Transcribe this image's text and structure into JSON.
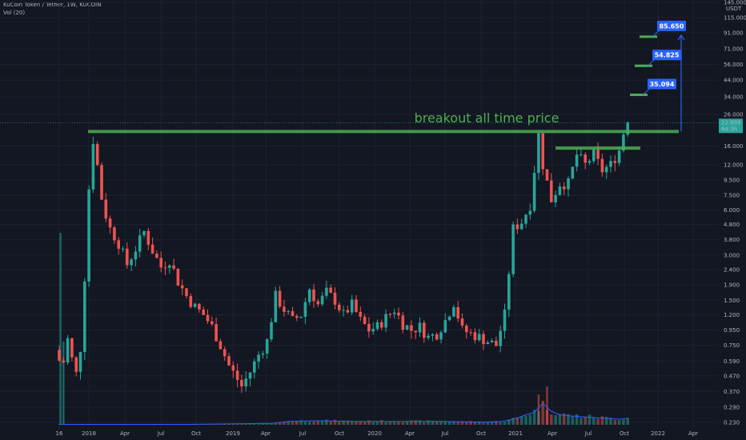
{
  "header": {
    "symbol_line": "KuCoin Token / Tether, 1W, KUCOIN",
    "volume_line": "Vol (20)"
  },
  "chart_data": {
    "type": "candlestick",
    "title": "KuCoin Token / Tether, 1W, KUCOIN",
    "scale": "log",
    "currency": "USDT",
    "ylim": [
      0.23,
      145
    ],
    "y_ticks": [
      "145.000",
      "115.000",
      "91.000",
      "71.000",
      "56.000",
      "44.000",
      "34.000",
      "26.000",
      "16.000",
      "12.000",
      "9.500",
      "7.500",
      "6.000",
      "4.800",
      "3.800",
      "3.000",
      "2.400",
      "1.900",
      "1.500",
      "1.200",
      "0.950",
      "0.750",
      "0.590",
      "0.470",
      "0.370",
      "0.290",
      "0.230"
    ],
    "x_ticks": [
      "16",
      "2018",
      "Apr",
      "Jul",
      "Oct",
      "2019",
      "Apr",
      "Jul",
      "Oct",
      "2020",
      "Apr",
      "Jul",
      "Oct",
      "2021",
      "Apr",
      "Jul",
      "Oct",
      "2022",
      "Apr"
    ],
    "last_price": "22.899",
    "countdown": "6d 3h",
    "annotations": {
      "breakout_label": "breakout all time price",
      "targets": [
        "35.094",
        "54.825",
        "85.650"
      ]
    },
    "ohlc_anchors": [
      {
        "t": 0,
        "p": 0.7
      },
      {
        "t": 0.6,
        "p": 0.6
      },
      {
        "t": 2.2,
        "p": 0.58
      },
      {
        "t": 3.2,
        "p": 0.9
      },
      {
        "t": 4.2,
        "p": 0.55
      },
      {
        "t": 5.2,
        "p": 0.47
      },
      {
        "t": 6.2,
        "p": 0.8
      },
      {
        "t": 7.6,
        "p": 4.5
      },
      {
        "t": 8.6,
        "p": 21
      },
      {
        "t": 9.2,
        "p": 16
      },
      {
        "t": 10.2,
        "p": 11
      },
      {
        "t": 11.2,
        "p": 6.5
      },
      {
        "t": 13,
        "p": 4.5
      },
      {
        "t": 15,
        "p": 3.6
      },
      {
        "t": 17,
        "p": 2.6
      },
      {
        "t": 19,
        "p": 3.3
      },
      {
        "t": 21,
        "p": 4.3
      },
      {
        "t": 23,
        "p": 3.2
      },
      {
        "t": 25,
        "p": 2.5
      },
      {
        "t": 27,
        "p": 2.8
      },
      {
        "t": 29,
        "p": 2.0
      },
      {
        "t": 31,
        "p": 1.6
      },
      {
        "t": 33,
        "p": 1.35
      },
      {
        "t": 35,
        "p": 1.2
      },
      {
        "t": 37,
        "p": 1.0
      },
      {
        "t": 39,
        "p": 0.75
      },
      {
        "t": 41,
        "p": 0.55
      },
      {
        "t": 44,
        "p": 0.4
      },
      {
        "t": 46,
        "p": 0.5
      },
      {
        "t": 48,
        "p": 0.65
      },
      {
        "t": 50,
        "p": 0.8
      },
      {
        "t": 52,
        "p": 1.6
      },
      {
        "t": 54,
        "p": 1.3
      },
      {
        "t": 56,
        "p": 1.1
      },
      {
        "t": 58,
        "p": 1.2
      },
      {
        "t": 60,
        "p": 1.8
      },
      {
        "t": 62,
        "p": 1.4
      },
      {
        "t": 64,
        "p": 1.7
      },
      {
        "t": 66,
        "p": 1.5
      },
      {
        "t": 68,
        "p": 1.2
      },
      {
        "t": 70,
        "p": 1.4
      },
      {
        "t": 72,
        "p": 1.1
      },
      {
        "t": 74,
        "p": 0.95
      },
      {
        "t": 76,
        "p": 1.0
      },
      {
        "t": 78,
        "p": 1.15
      },
      {
        "t": 80,
        "p": 1.3
      },
      {
        "t": 82,
        "p": 1.05
      },
      {
        "t": 84,
        "p": 0.95
      },
      {
        "t": 86,
        "p": 1.0
      },
      {
        "t": 88,
        "p": 0.85
      },
      {
        "t": 90,
        "p": 0.9
      },
      {
        "t": 92,
        "p": 1.1
      },
      {
        "t": 94,
        "p": 1.45
      },
      {
        "t": 96,
        "p": 0.95
      },
      {
        "t": 98,
        "p": 0.9
      },
      {
        "t": 100,
        "p": 0.85
      },
      {
        "t": 102,
        "p": 0.8
      },
      {
        "t": 104,
        "p": 0.75
      },
      {
        "t": 106,
        "p": 1.2
      },
      {
        "t": 108,
        "p": 4.5
      },
      {
        "t": 110,
        "p": 5
      },
      {
        "t": 112,
        "p": 6.5
      },
      {
        "t": 114,
        "p": 19
      },
      {
        "t": 115,
        "p": 12
      },
      {
        "t": 117,
        "p": 7
      },
      {
        "t": 119,
        "p": 9
      },
      {
        "t": 121,
        "p": 9
      },
      {
        "t": 123,
        "p": 14
      },
      {
        "t": 125,
        "p": 12
      },
      {
        "t": 127,
        "p": 14
      },
      {
        "t": 129,
        "p": 11
      },
      {
        "t": 131,
        "p": 12
      },
      {
        "t": 133,
        "p": 15
      },
      {
        "t": 134.6,
        "p": 22.9
      }
    ],
    "volume_anchors": [
      {
        "t": 0,
        "v": 0.02
      },
      {
        "t": 6,
        "v": 0.02
      },
      {
        "t": 30,
        "v": 0.02
      },
      {
        "t": 50,
        "v": 0.06
      },
      {
        "t": 54,
        "v": 0.15
      },
      {
        "t": 60,
        "v": 0.18
      },
      {
        "t": 70,
        "v": 0.15
      },
      {
        "t": 80,
        "v": 0.15
      },
      {
        "t": 90,
        "v": 0.15
      },
      {
        "t": 100,
        "v": 0.12
      },
      {
        "t": 105,
        "v": 0.15
      },
      {
        "t": 108,
        "v": 0.3
      },
      {
        "t": 110,
        "v": 0.45
      },
      {
        "t": 112,
        "v": 0.55
      },
      {
        "t": 114,
        "v": 0.95
      },
      {
        "t": 116,
        "v": 0.6
      },
      {
        "t": 118,
        "v": 0.45
      },
      {
        "t": 120,
        "v": 0.4
      },
      {
        "t": 124,
        "v": 0.35
      },
      {
        "t": 128,
        "v": 0.3
      },
      {
        "t": 132,
        "v": 0.25
      },
      {
        "t": 134.6,
        "v": 0.3
      }
    ],
    "special_volume_bars": [
      {
        "t": 0.3,
        "v": 6
      },
      {
        "t": 1.0,
        "v": 2.6
      },
      {
        "t": 115,
        "v": 1.2
      },
      {
        "t": 113,
        "v": 0.95
      }
    ]
  }
}
